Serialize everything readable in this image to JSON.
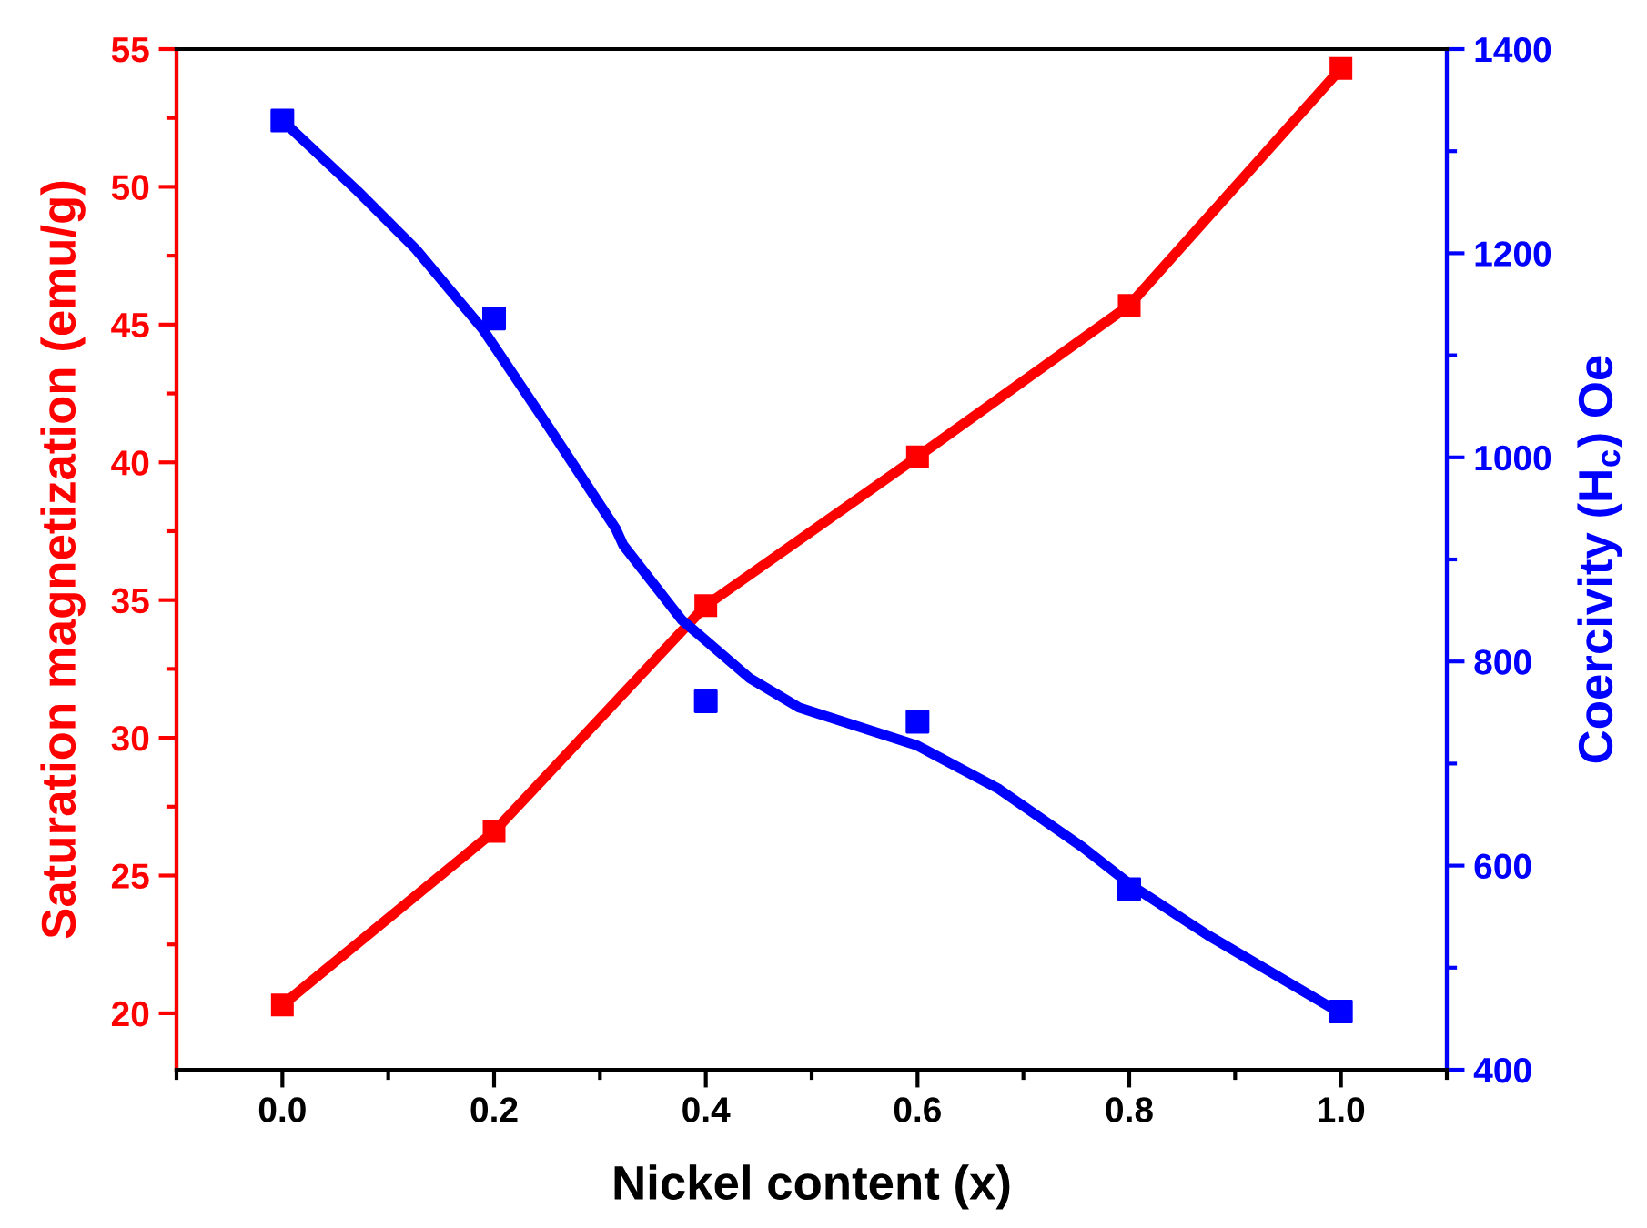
{
  "chart_data": {
    "type": "line",
    "xlabel": "Nickel content (x)",
    "ylabel": "Saturation magnetization (emu/g)",
    "y2label": "Coercivity (H$_{c}$) Oe",
    "x": [
      0.0,
      0.2,
      0.4,
      0.6,
      0.8,
      1.0
    ],
    "series": [
      {
        "color": "#ff0000",
        "marker": "square",
        "values": [
          20.3,
          26.6,
          34.8,
          40.2,
          45.7,
          54.3
        ]
      },
      {
        "type": "scatter",
        "axis": "y2",
        "color": "#0000ff",
        "marker": "square",
        "values": [
          1330,
          1136,
          761,
          741,
          577,
          457
        ]
      },
      {
        "axis": "y2",
        "color": "#0000ff",
        "marker": "none",
        "x": [
          0.0,
          0.071,
          0.126,
          0.189,
          0.252,
          0.315,
          0.322,
          0.377,
          0.441,
          0.488,
          0.599,
          0.677,
          0.756,
          0.803,
          0.874,
          0.997
        ],
        "values": [
          1330,
          1261,
          1204,
          1126,
          1029,
          930,
          914,
          841,
          784,
          755,
          718,
          675,
          618,
          580,
          532,
          457
        ]
      }
    ],
    "xlim": [
      -0.1,
      1.1
    ],
    "xticks": [
      {
        "value": 0.0,
        "label": "0.0"
      },
      {
        "value": 0.2,
        "label": "0.2"
      },
      {
        "value": 0.4,
        "label": "0.4"
      },
      {
        "value": 0.6,
        "label": "0.6"
      },
      {
        "value": 0.8,
        "label": "0.8"
      },
      {
        "value": 1.0,
        "label": "1.0"
      }
    ],
    "ylim": [
      17.95,
      55
    ],
    "yticks": [
      20,
      25,
      30,
      35,
      40,
      45,
      50,
      55
    ],
    "y2lim": [
      400,
      1400
    ],
    "y2ticks": [
      400,
      600,
      800,
      1000,
      1200,
      1400
    ],
    "grid": false
  }
}
